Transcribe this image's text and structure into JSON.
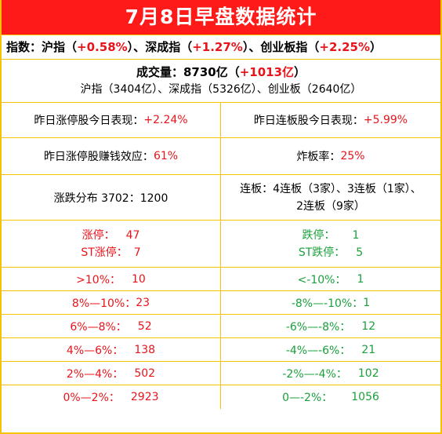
{
  "title": "7月8日早盘数据统计",
  "indices": {
    "label": "指数：",
    "sh_name": "沪指",
    "sh_change": "+0.58%",
    "sz_name": "深成指",
    "sz_change": "+1.27%",
    "cy_name": "创业板指",
    "cy_change": "+2.25%",
    "sep": "、",
    "lparen": "（",
    "rparen": "）"
  },
  "volume": {
    "label": "成交量：",
    "total": "8730亿",
    "change": "+1013亿",
    "breakdown": "沪指（3404亿）、深成指（5326亿）、创业板（2640亿）"
  },
  "performance": {
    "limit_up_label": "昨日涨停股今日表现：",
    "limit_up_value": "+2.24%",
    "consecutive_label": "昨日连板股今日表现：",
    "consecutive_value": "+5.99%"
  },
  "effect": {
    "profit_label": "昨日涨停股赚钱效应：",
    "profit_value": "61%",
    "break_label": "炸板率：",
    "break_value": "25%"
  },
  "distribution": {
    "label": "涨跌分布 3702：1200",
    "lianban_line1": "连板：4连板（3家）、3连板（1家）、",
    "lianban_line2": "2连板（9家）"
  },
  "limits": {
    "up_label": "涨停：",
    "up_value": "47",
    "st_up_label": "ST涨停：",
    "st_up_value": "7",
    "down_label": "跌停：",
    "down_value": "1",
    "st_down_label": "ST跌停：",
    "st_down_value": "5"
  },
  "ranges": [
    {
      "up_label": ">10%：",
      "up_value": "10",
      "down_label": "<-10%：",
      "down_value": "1"
    },
    {
      "up_label": "8%—10%：",
      "up_value": "23",
      "down_label": "-8%—-10%：",
      "down_value": "1"
    },
    {
      "up_label": "6%—8%：",
      "up_value": "52",
      "down_label": "-6%—-8%：",
      "down_value": "12"
    },
    {
      "up_label": "4%—6%：",
      "up_value": "138",
      "down_label": "-4%—-6%：",
      "down_value": "21"
    },
    {
      "up_label": "2%—4%：",
      "up_value": "502",
      "down_label": "-2%—-4%：",
      "down_value": "102"
    },
    {
      "up_label": "0%—2%：",
      "up_value": "2923",
      "down_label": "0—-2%：",
      "down_value": "1056"
    }
  ],
  "colors": {
    "title_bg": "#ff1a1a",
    "border": "#f5c400",
    "up": "#e8141b",
    "down": "#1aa03c"
  }
}
